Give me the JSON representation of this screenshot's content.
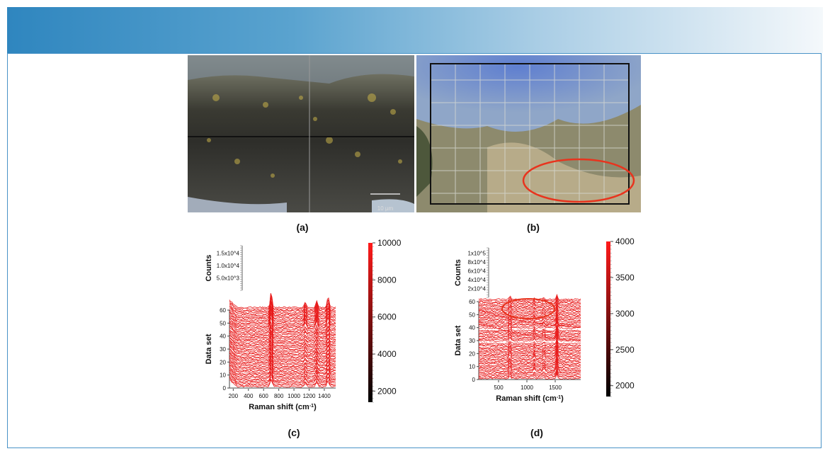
{
  "figure": {
    "panel_labels": [
      "(a)",
      "(b)",
      "(c)",
      "(d)"
    ],
    "micrograph_a": {
      "scalebar_label": "10 µm"
    }
  },
  "chart_data": [
    {
      "panel": "(c)",
      "type": "line",
      "x_label": "Raman shift (cm-1)",
      "x_ticks": [
        "200",
        "400",
        "600",
        "800",
        "1000",
        "1200",
        "1400"
      ],
      "y_label": "Data set",
      "y_ticks": [
        "0",
        "10",
        "20",
        "30",
        "40",
        "50",
        "60"
      ],
      "z_label": "Counts",
      "z_ticks": [
        "5.0x10^3",
        "1.0x10^4",
        "1.5x10^4"
      ],
      "colorbar_ticks": [
        "2000",
        "4000",
        "6000",
        "8000",
        "10000"
      ],
      "colorbar_range": [
        1400,
        10000
      ],
      "peaks_cm1": [
        700,
        1150,
        1300,
        1450
      ],
      "num_spectra": 62
    },
    {
      "panel": "(d)",
      "type": "line",
      "x_label": "Raman shift (cm-1)",
      "x_ticks": [
        "500",
        "1000",
        "1500"
      ],
      "y_label": "Data set",
      "y_ticks": [
        "0",
        "10",
        "20",
        "30",
        "40",
        "50",
        "60"
      ],
      "z_label": "Counts",
      "z_ticks": [
        "2x10^4",
        "4x10^4",
        "6x10^4",
        "8x10^4",
        "1x10^5"
      ],
      "colorbar_ticks": [
        "2000",
        "2500",
        "3000",
        "3500",
        "4000"
      ],
      "colorbar_range": [
        1850,
        4000
      ],
      "peaks_cm1": [
        700,
        1130,
        1300,
        1530
      ],
      "num_spectra": 62,
      "annotation": "red ellipse highlighting data sets 55-62"
    }
  ],
  "colors": {
    "accent": "#2f86bf",
    "spectrum": "#8b1a1a",
    "highlight": "#e8341e"
  }
}
